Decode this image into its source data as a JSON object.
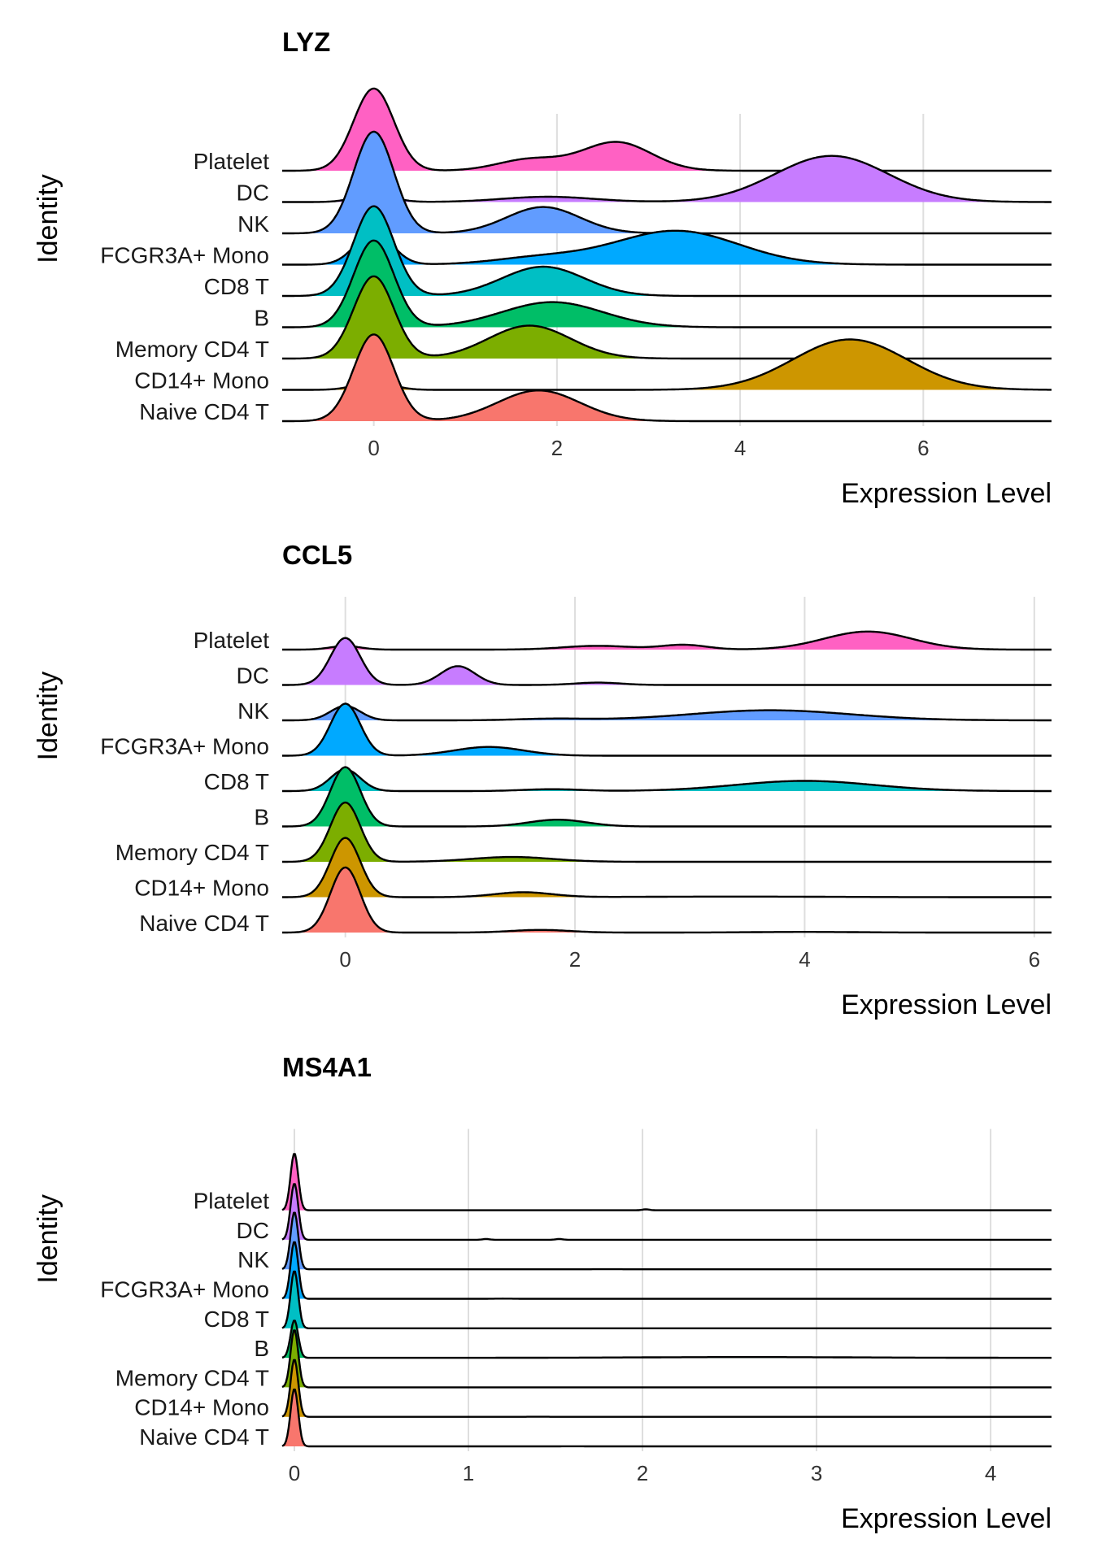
{
  "colors": {
    "Naive CD4 T": "#F8766D",
    "CD14+ Mono": "#CD9600",
    "Memory CD4 T": "#7CAE00",
    "B": "#00BE67",
    "CD8 T": "#00BFC4",
    "FCGR3A+ Mono": "#00A9FF",
    "NK": "#619CFF",
    "DC": "#C77CFF",
    "Platelet": "#FF61C3"
  },
  "chart_data": [
    {
      "type": "ridgeline",
      "title": "LYZ",
      "xlabel": "Expression Level",
      "ylabel": "Identity",
      "xlim": [
        -1,
        7.4
      ],
      "xticks": [
        "0",
        "2",
        "4",
        "6"
      ],
      "grid": true,
      "legend": "none",
      "categories": [
        "Naive CD4 T",
        "CD14+ Mono",
        "Memory CD4 T",
        "B",
        "CD8 T",
        "FCGR3A+ Mono",
        "NK",
        "DC",
        "Platelet"
      ],
      "series": [
        {
          "name": "Naive CD4 T",
          "components": [
            [
              0.58,
              0.0,
              0.22
            ],
            [
              0.42,
              1.8,
              0.45
            ]
          ]
        },
        {
          "name": "CD14+ Mono",
          "components": [
            [
              0.05,
              0.0,
              0.2
            ],
            [
              0.95,
              5.2,
              0.62
            ]
          ]
        },
        {
          "name": "Memory CD4 T",
          "components": [
            [
              0.55,
              0.0,
              0.22
            ],
            [
              0.45,
              1.7,
              0.45
            ]
          ]
        },
        {
          "name": "B",
          "components": [
            [
              0.58,
              0.0,
              0.22
            ],
            [
              0.42,
              1.95,
              0.55
            ]
          ]
        },
        {
          "name": "CD8 T",
          "components": [
            [
              0.6,
              0.0,
              0.22
            ],
            [
              0.4,
              1.85,
              0.45
            ]
          ]
        },
        {
          "name": "FCGR3A+ Mono",
          "components": [
            [
              0.2,
              0.0,
              0.2
            ],
            [
              0.1,
              1.8,
              0.5
            ],
            [
              0.7,
              3.3,
              0.68
            ]
          ]
        },
        {
          "name": "NK",
          "components": [
            [
              0.68,
              0.0,
              0.22
            ],
            [
              0.32,
              1.85,
              0.4
            ]
          ]
        },
        {
          "name": "DC",
          "components": [
            [
              0.05,
              0.0,
              0.2
            ],
            [
              0.08,
              1.9,
              0.5
            ],
            [
              0.87,
              5.0,
              0.62
            ]
          ]
        },
        {
          "name": "Platelet",
          "components": [
            [
              0.55,
              0.0,
              0.22
            ],
            [
              0.12,
              1.7,
              0.35
            ],
            [
              0.33,
              2.65,
              0.38
            ]
          ]
        }
      ]
    },
    {
      "type": "ridgeline",
      "title": "CCL5",
      "xlabel": "Expression Level",
      "ylabel": "Identity",
      "xlim": [
        -0.55,
        6.15
      ],
      "xticks": [
        "0",
        "2",
        "4",
        "6"
      ],
      "grid": true,
      "legend": "none",
      "categories": [
        "Naive CD4 T",
        "CD14+ Mono",
        "Memory CD4 T",
        "B",
        "CD8 T",
        "FCGR3A+ Mono",
        "NK",
        "DC",
        "Platelet"
      ],
      "series": [
        {
          "name": "Naive CD4 T",
          "components": [
            [
              0.9,
              0.0,
              0.13
            ],
            [
              0.07,
              1.7,
              0.25
            ],
            [
              0.03,
              4.0,
              0.45
            ]
          ]
        },
        {
          "name": "CD14+ Mono",
          "components": [
            [
              0.82,
              0.0,
              0.13
            ],
            [
              0.13,
              1.55,
              0.25
            ],
            [
              0.05,
              3.4,
              0.8
            ]
          ]
        },
        {
          "name": "Memory CD4 T",
          "components": [
            [
              0.82,
              0.0,
              0.13
            ],
            [
              0.18,
              1.45,
              0.35
            ]
          ]
        },
        {
          "name": "B",
          "components": [
            [
              0.82,
              0.0,
              0.13
            ],
            [
              0.18,
              1.85,
              0.25
            ]
          ]
        },
        {
          "name": "CD8 T",
          "components": [
            [
              0.3,
              0.0,
              0.13
            ],
            [
              0.05,
              1.8,
              0.25
            ],
            [
              0.65,
              4.0,
              0.6
            ]
          ]
        },
        {
          "name": "FCGR3A+ Mono",
          "components": [
            [
              0.72,
              0.0,
              0.13
            ],
            [
              0.28,
              1.25,
              0.3
            ]
          ]
        },
        {
          "name": "NK",
          "components": [
            [
              0.2,
              0.0,
              0.13
            ],
            [
              0.05,
              1.8,
              0.3
            ],
            [
              0.75,
              3.7,
              0.7
            ]
          ]
        },
        {
          "name": "DC",
          "components": [
            [
              0.65,
              0.0,
              0.13
            ],
            [
              0.3,
              0.98,
              0.15
            ],
            [
              0.05,
              2.2,
              0.2
            ]
          ]
        },
        {
          "name": "Platelet",
          "components": [
            [
              0.05,
              0.0,
              0.13
            ],
            [
              0.12,
              2.2,
              0.3
            ],
            [
              0.1,
              2.95,
              0.2
            ],
            [
              0.73,
              4.55,
              0.38
            ]
          ]
        }
      ]
    },
    {
      "type": "ridgeline",
      "title": "MS4A1",
      "xlabel": "Expression Level",
      "ylabel": "Identity",
      "xlim": [
        -0.07,
        4.35
      ],
      "xticks": [
        "0",
        "1",
        "2",
        "3",
        "4"
      ],
      "grid": true,
      "legend": "none",
      "categories": [
        "Naive CD4 T",
        "CD14+ Mono",
        "Memory CD4 T",
        "B",
        "CD8 T",
        "FCGR3A+ Mono",
        "NK",
        "DC",
        "Platelet"
      ],
      "series": [
        {
          "name": "Naive CD4 T",
          "components": [
            [
              0.996,
              0.0,
              0.022
            ],
            [
              0.004,
              1.6,
              0.05
            ]
          ]
        },
        {
          "name": "CD14+ Mono",
          "components": [
            [
              0.996,
              0.0,
              0.022
            ],
            [
              0.004,
              1.4,
              0.1
            ]
          ]
        },
        {
          "name": "Memory CD4 T",
          "components": [
            [
              0.997,
              0.0,
              0.022
            ],
            [
              0.003,
              1.5,
              0.2
            ]
          ]
        },
        {
          "name": "B",
          "components": [
            [
              0.65,
              0.0,
              0.022
            ],
            [
              0.35,
              2.6,
              0.6
            ]
          ]
        },
        {
          "name": "CD8 T",
          "components": [
            [
              0.996,
              0.0,
              0.022
            ],
            [
              0.004,
              1.8,
              0.3
            ]
          ]
        },
        {
          "name": "FCGR3A+ Mono",
          "components": [
            [
              0.992,
              0.0,
              0.022
            ],
            [
              0.008,
              1.2,
              0.05
            ]
          ]
        },
        {
          "name": "NK",
          "components": [
            [
              0.99,
              0.0,
              0.022
            ],
            [
              0.01,
              1.8,
              0.3
            ]
          ]
        },
        {
          "name": "DC",
          "components": [
            [
              0.976,
              0.0,
              0.022
            ],
            [
              0.012,
              1.1,
              0.02
            ],
            [
              0.012,
              1.52,
              0.02
            ]
          ]
        },
        {
          "name": "Platelet",
          "components": [
            [
              0.985,
              0.0,
              0.022
            ],
            [
              0.015,
              2.02,
              0.02
            ]
          ]
        }
      ]
    }
  ]
}
